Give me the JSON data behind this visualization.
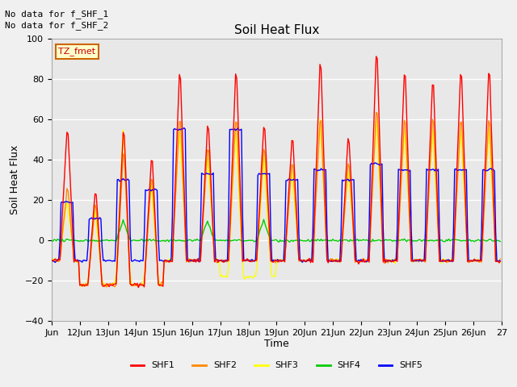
{
  "title": "Soil Heat Flux",
  "ylabel": "Soil Heat Flux",
  "xlabel": "Time",
  "ylim": [
    -40,
    100
  ],
  "annotations": [
    "No data for f_SHF_1",
    "No data for f_SHF_2"
  ],
  "tz_label": "TZ_fmet",
  "legend_entries": [
    "SHF1",
    "SHF2",
    "SHF3",
    "SHF4",
    "SHF5"
  ],
  "legend_colors": [
    "#ff0000",
    "#ff8800",
    "#ffff00",
    "#00cc00",
    "#0000ff"
  ],
  "background_color": "#e8e8e8",
  "plot_bg_color": "#e8e8e8",
  "fig_bg_color": "#f0f0f0",
  "x_tick_labels": [
    "Jun",
    "12Jun",
    "13Jun",
    "14Jun",
    "15Jun",
    "16Jun",
    "17Jun",
    "18Jun",
    "19Jun",
    "20Jun",
    "21Jun",
    "22Jun",
    "23Jun",
    "24Jun",
    "25Jun",
    "26Jun",
    "27"
  ],
  "num_days": 16,
  "hours_per_day": 24,
  "seed": 42,
  "day_peaks_shf1": [
    60,
    28,
    60,
    45,
    90,
    62,
    90,
    62,
    55,
    95,
    55,
    100,
    90,
    85,
    90,
    90
  ],
  "day_peaks_shf2": [
    28,
    20,
    48,
    35,
    65,
    50,
    65,
    50,
    42,
    65,
    42,
    70,
    65,
    65,
    65,
    65
  ],
  "day_peaks_shf3": [
    20,
    15,
    55,
    28,
    55,
    42,
    55,
    42,
    35,
    60,
    35,
    60,
    55,
    55,
    55,
    55
  ],
  "day_peaks_shf4": [
    0,
    0,
    10,
    0,
    0,
    10,
    0,
    10,
    0,
    0,
    0,
    0,
    0,
    0,
    0,
    0
  ],
  "day_peaks_shf5": [
    19,
    11,
    30,
    25,
    55,
    33,
    55,
    33,
    30,
    35,
    30,
    38,
    35,
    35,
    35,
    35
  ],
  "night_val_shf1": [
    -10,
    -22,
    -22,
    -22,
    -10,
    -10,
    -10,
    -10,
    -10,
    -10,
    -10,
    -10,
    -10,
    -10,
    -10,
    -10
  ],
  "night_val_shf2": [
    -10,
    -22,
    -22,
    -22,
    -10,
    -10,
    -10,
    -10,
    -10,
    -10,
    -10,
    -10,
    -10,
    -10,
    -10,
    -10
  ],
  "night_val_shf3": [
    -10,
    -22,
    -22,
    -22,
    -10,
    -10,
    -18,
    -18,
    -10,
    -10,
    -10,
    -10,
    -10,
    -10,
    -10,
    -10
  ],
  "night_val_shf4": [
    0,
    0,
    0,
    0,
    0,
    0,
    0,
    0,
    0,
    0,
    0,
    0,
    0,
    0,
    0,
    0
  ],
  "night_val_shf5": [
    -10,
    -10,
    -10,
    -10,
    -10,
    -10,
    -10,
    -10,
    -10,
    -10,
    -10,
    -10,
    -10,
    -10,
    -10,
    -10
  ]
}
